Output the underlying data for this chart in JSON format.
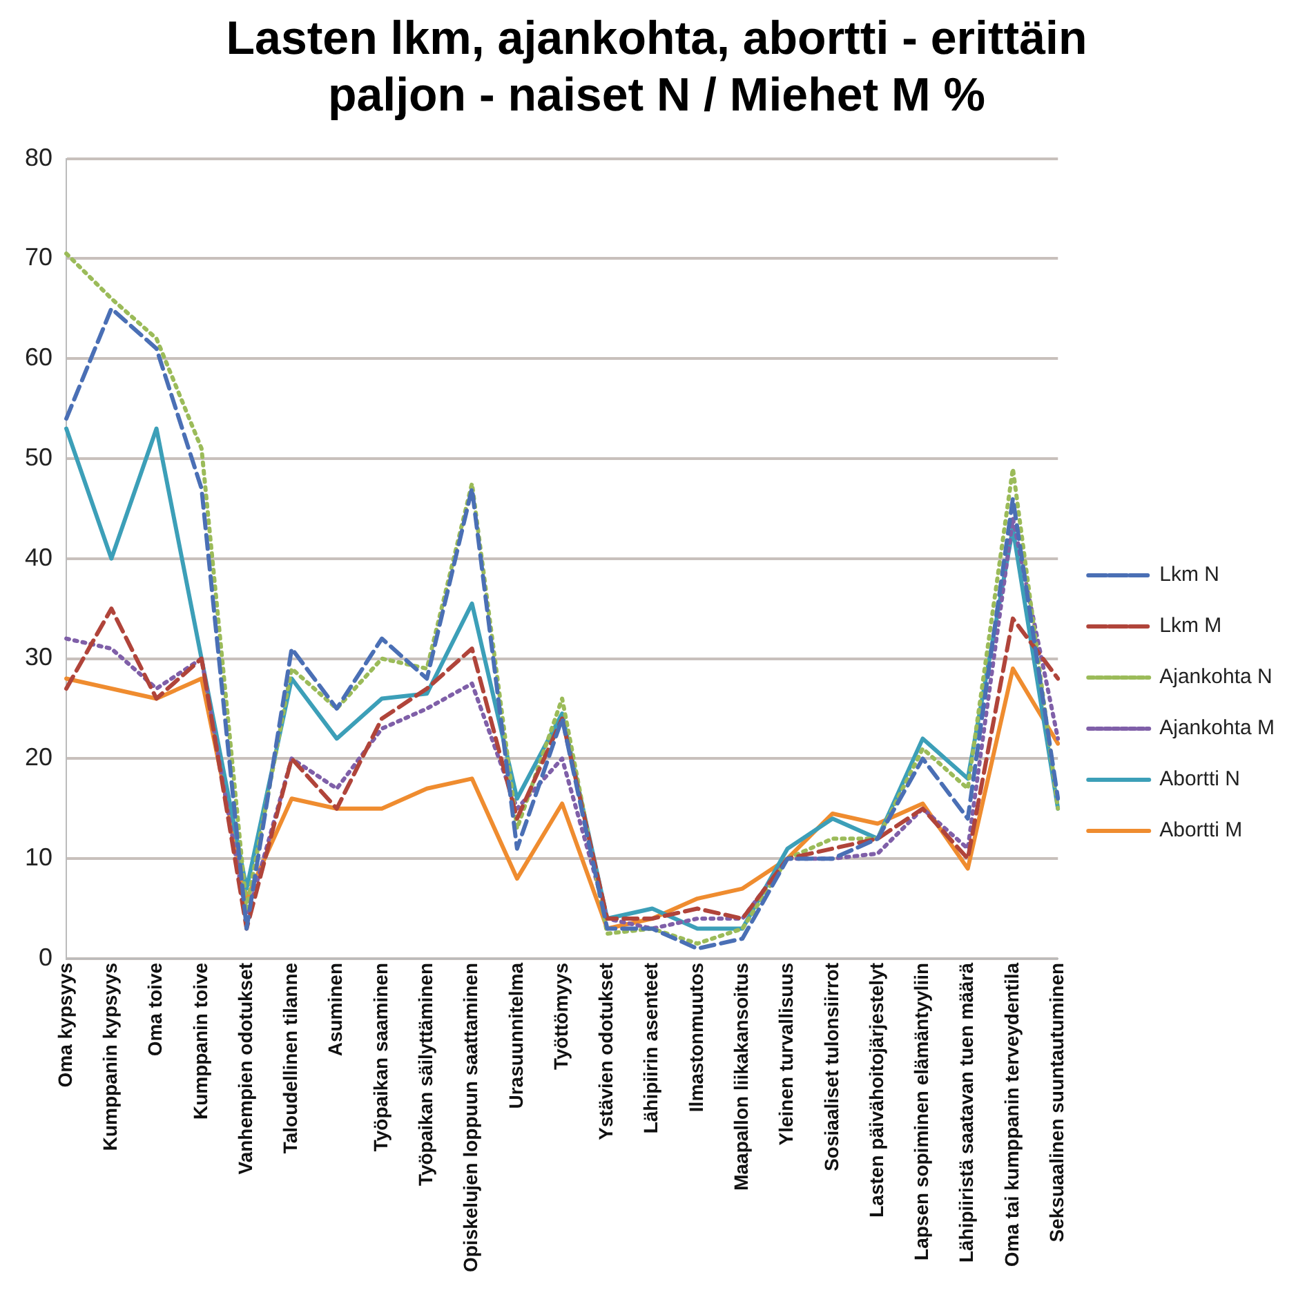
{
  "chart_data": {
    "type": "line",
    "title": "Lasten lkm, ajankohta, abortti - erittäin paljon - naiset N / Miehet M %",
    "categories": [
      "Oma kypsyys",
      "Kumppanin kypsyys",
      "Oma toive",
      "Kumppanin toive",
      "Vanhempien odotukset",
      "Taloudellinen tilanne",
      "Asuminen",
      "Työpaikan saaminen",
      "Työpaikan säilyttäminen",
      "Opiskelujen loppuun saattaminen",
      "Urasuunnitelma",
      "Työttömyys",
      "Ystävien odotukset",
      "Lähipiirin asenteet",
      "Ilmastonmuutos",
      "Maapallon liikakansoitus",
      "Yleinen turvallisuus",
      "Sosiaaliset tulonsiirrot",
      "Lasten päivähoitojärjestelyt",
      "Lapsen sopiminen elämäntyyliin",
      "Lähipiiristä saatavan tuen määrä",
      "Oma tai kumppanin terveydentila",
      "Seksuaalinen suuntautuminen"
    ],
    "series": [
      {
        "name": "Lkm N",
        "color": "#4a6fb5",
        "line_style": "dashed",
        "values": [
          54,
          65,
          61,
          47,
          3,
          31,
          25,
          32,
          28,
          47,
          11,
          24,
          3,
          3,
          1,
          2,
          10,
          10,
          12,
          20,
          14,
          46,
          16
        ]
      },
      {
        "name": "Lkm M",
        "color": "#b0443a",
        "line_style": "dashed",
        "values": [
          27,
          35,
          26,
          30,
          3,
          20,
          15,
          24,
          27,
          31,
          14,
          24,
          4,
          4,
          5,
          4,
          10,
          11,
          12,
          15,
          10,
          34,
          28
        ]
      },
      {
        "name": "Ajankohta N",
        "color": "#9bbb59",
        "line_style": "dotted",
        "values": [
          70.5,
          66,
          62,
          51,
          5,
          29,
          25,
          30,
          29,
          47.5,
          13,
          26,
          2.5,
          3,
          1.5,
          3,
          10,
          12,
          12,
          21,
          17,
          49,
          15
        ]
      },
      {
        "name": "Ajankohta M",
        "color": "#7f5fa8",
        "line_style": "dotted",
        "values": [
          32,
          31,
          27,
          30,
          4,
          20,
          17,
          23,
          25,
          27.5,
          15,
          20,
          4,
          3,
          4,
          4,
          10,
          10,
          10.5,
          15,
          11,
          44,
          22
        ]
      },
      {
        "name": "Abortti N",
        "color": "#3c9fb8",
        "line_style": "solid",
        "values": [
          53,
          40,
          53,
          30,
          7,
          28,
          22,
          26,
          26.5,
          35.5,
          16,
          24.5,
          4,
          5,
          3,
          3,
          11,
          14,
          12,
          22,
          18,
          43,
          15
        ]
      },
      {
        "name": "Abortti M",
        "color": "#ef8c2f",
        "line_style": "solid",
        "values": [
          28,
          27,
          26,
          28,
          6,
          16,
          15,
          15,
          17,
          18,
          8,
          15.5,
          3,
          4,
          6,
          7,
          10,
          14.5,
          13.5,
          15.5,
          9,
          29,
          21.5
        ]
      }
    ],
    "ylim": [
      0,
      80
    ],
    "yticks": [
      0,
      10,
      20,
      30,
      40,
      50,
      60,
      70,
      80
    ],
    "grid": "y",
    "legend": "right",
    "marker": "none"
  }
}
